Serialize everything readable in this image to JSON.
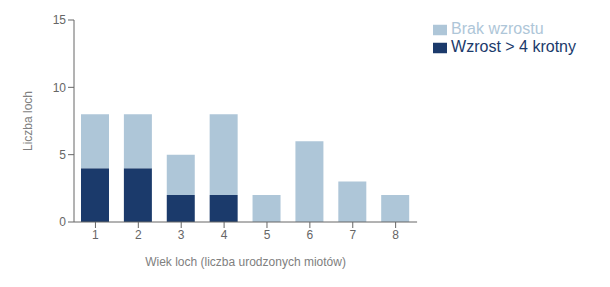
{
  "chart_data": {
    "type": "bar",
    "stacked": true,
    "categories": [
      1,
      2,
      3,
      4,
      5,
      6,
      7,
      8
    ],
    "series": [
      {
        "name": "Wzrost > 4 krotny",
        "color": "#1b3a6b",
        "values": [
          4,
          4,
          2,
          2,
          0,
          0,
          0,
          0
        ]
      },
      {
        "name": "Brak wzrostu",
        "color": "#aec6d8",
        "values": [
          4,
          4,
          3,
          6,
          2,
          6,
          3,
          2
        ]
      }
    ],
    "xlabel": "Wiek loch (liczba urodzonych miotów)",
    "ylabel": "Liczba loch",
    "ylim": [
      0,
      15
    ],
    "yticks": [
      0,
      5,
      10,
      15
    ],
    "grid": false,
    "legend": "right"
  }
}
